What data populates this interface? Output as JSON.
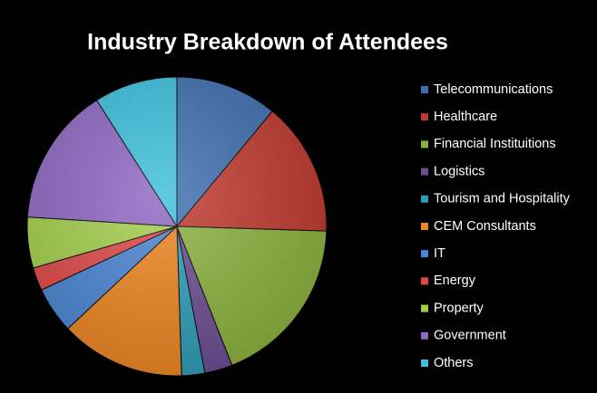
{
  "chart_data": {
    "type": "pie",
    "title": "Industry Breakdown of Attendees",
    "categories": [
      "Telecommunications",
      "Healthcare",
      "Financial Instituitions",
      "Logistics",
      "Tourism and Hospitality",
      "CEM Consultants",
      "IT",
      "Energy",
      "Property",
      "Government",
      "Others"
    ],
    "values": [
      11,
      14.5,
      18.5,
      3,
      2.5,
      13.5,
      5,
      2.5,
      5.5,
      15,
      9
    ],
    "colors": [
      "#3f6fb0",
      "#c0392f",
      "#8db33f",
      "#6c4e94",
      "#2e9db8",
      "#ee8622",
      "#4a86d4",
      "#e04848",
      "#a4cf4c",
      "#8f68c2",
      "#3cc0dc"
    ],
    "legend": "right"
  }
}
